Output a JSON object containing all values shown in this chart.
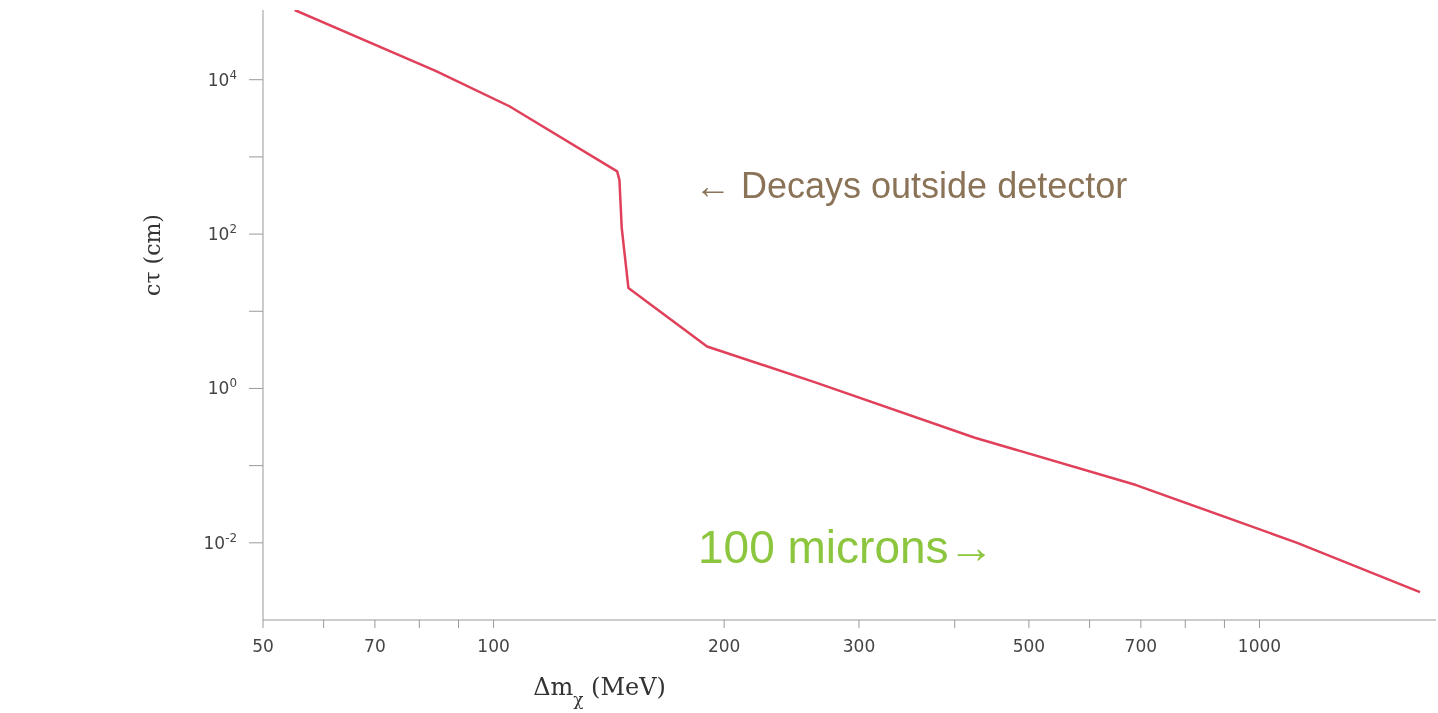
{
  "chart_data": {
    "type": "line",
    "xlabel": "Δm$_{χ}$ (MeV)",
    "ylabel": "cτ (cm)",
    "log": "xy",
    "xlim": [
      50,
      1700
    ],
    "ylim": [
      0.001,
      80000
    ],
    "xticks": [
      50,
      {
        "value": 60,
        "label": null
      },
      70,
      {
        "value": 80,
        "label": null
      },
      {
        "value": 90,
        "label": null
      },
      100,
      200,
      300,
      {
        "value": 400,
        "label": null
      },
      500,
      {
        "value": 600,
        "label": null
      },
      700,
      {
        "value": 800,
        "label": null
      },
      {
        "value": 900,
        "label": null
      },
      1000
    ],
    "yticks": [
      {
        "value": 0.01,
        "label": "10$^{-2}$"
      },
      {
        "value": 0.1,
        "label": null
      },
      {
        "value": 1,
        "label": "10$^{0}$"
      },
      {
        "value": 10,
        "label": null
      },
      {
        "value": 100,
        "label": "10$^{2}$"
      },
      {
        "value": 1000,
        "label": null
      },
      {
        "value": 10000,
        "label": "10$^{4}$"
      }
    ],
    "x": [
      55,
      84,
      105,
      145,
      146,
      147,
      150,
      190,
      263,
      425,
      690,
      1120,
      1620
    ],
    "series": [
      {
        "color": "#e0405a",
        "values": [
          80000,
          13000,
          4500,
          650,
          500,
          120,
          20,
          3.5,
          1.2,
          0.23,
          0.056,
          0.01,
          0.0023
        ]
      }
    ],
    "annotations": [
      "← Decays outside detector",
      "100 microns→"
    ],
    "marker": "none",
    "line_style": "solid"
  }
}
